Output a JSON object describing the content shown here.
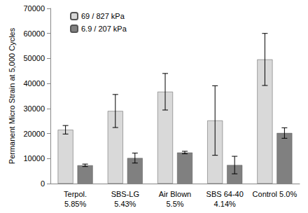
{
  "chart_data": {
    "type": "bar",
    "categories": [
      "Terpol.\n5.85%",
      "SBS-LG\n5.43%",
      "Air Blown\n5.5%",
      "SBS 64-40\n4.14%",
      "Control 5.0%"
    ],
    "y_label": "Permanent Micro Strain at 5,000 Cycles",
    "series": [
      {
        "name": "69 / 827 kPa",
        "color": "#d9d9d9",
        "values": [
          21500,
          29000,
          36700,
          25200,
          49600
        ],
        "errors": [
          1700,
          6600,
          7300,
          13900,
          10400
        ]
      },
      {
        "name": "6.9 / 207 kPa",
        "color": "#808080",
        "values": [
          7300,
          10200,
          12400,
          7400,
          20200
        ],
        "errors": [
          500,
          2000,
          500,
          3500,
          2100
        ]
      }
    ],
    "ylim": [
      0,
      70000
    ],
    "yticks": [
      0,
      10000,
      20000,
      30000,
      40000,
      50000,
      60000,
      70000
    ],
    "grid": false,
    "legend": "top-left"
  }
}
